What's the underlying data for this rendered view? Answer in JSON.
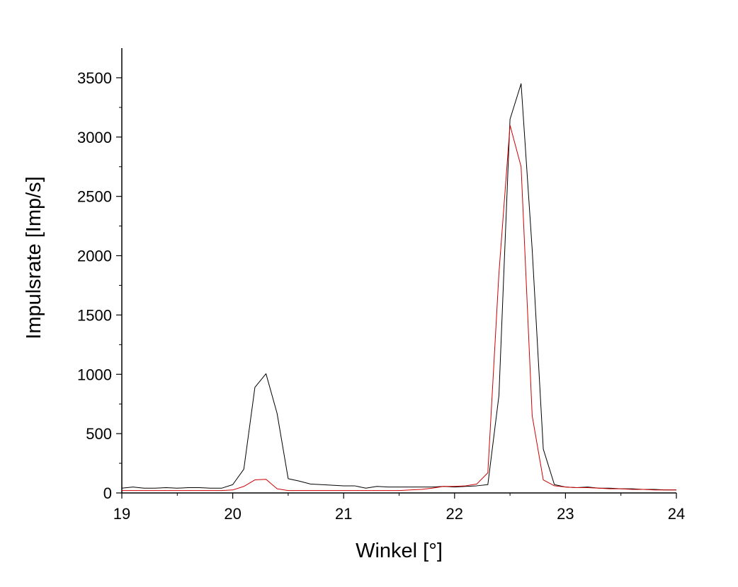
{
  "chart_data": {
    "type": "line",
    "title": "",
    "xlabel": "Winkel [°]",
    "ylabel": "Impulsrate [Imp/s]",
    "xlim": [
      19,
      24
    ],
    "ylim": [
      0,
      3750
    ],
    "x_ticks": [
      19,
      20,
      21,
      22,
      23,
      24
    ],
    "y_ticks": [
      0,
      500,
      1000,
      1500,
      2000,
      2500,
      3000,
      3500
    ],
    "grid": false,
    "legend": "none",
    "series": [
      {
        "color": "#000000",
        "x": [
          19.0,
          19.1,
          19.2,
          19.3,
          19.4,
          19.5,
          19.6,
          19.7,
          19.8,
          19.9,
          20.0,
          20.1,
          20.2,
          20.3,
          20.4,
          20.5,
          20.6,
          20.7,
          20.8,
          20.9,
          21.0,
          21.1,
          21.2,
          21.3,
          21.4,
          21.5,
          21.6,
          21.7,
          21.8,
          21.9,
          22.0,
          22.1,
          22.2,
          22.3,
          22.4,
          22.5,
          22.6,
          22.7,
          22.8,
          22.9,
          23.0,
          23.1,
          23.2,
          23.3,
          23.4,
          23.5,
          23.6,
          23.7,
          23.8,
          23.9,
          24.0
        ],
        "y": [
          40,
          50,
          40,
          40,
          45,
          40,
          45,
          45,
          40,
          40,
          70,
          200,
          890,
          1005,
          670,
          120,
          100,
          75,
          70,
          65,
          60,
          60,
          40,
          55,
          50,
          50,
          50,
          50,
          50,
          55,
          50,
          55,
          60,
          70,
          820,
          3150,
          3450,
          2050,
          370,
          70,
          50,
          45,
          50,
          40,
          40,
          35,
          35,
          30,
          30,
          25,
          25
        ]
      },
      {
        "color": "#cc0000",
        "x": [
          19.0,
          19.1,
          19.2,
          19.3,
          19.4,
          19.5,
          19.6,
          19.7,
          19.8,
          19.9,
          20.0,
          20.1,
          20.2,
          20.3,
          20.4,
          20.5,
          20.6,
          20.7,
          20.8,
          20.9,
          21.0,
          21.1,
          21.2,
          21.3,
          21.4,
          21.5,
          21.6,
          21.7,
          21.8,
          21.9,
          22.0,
          22.1,
          22.2,
          22.3,
          22.4,
          22.5,
          22.6,
          22.7,
          22.8,
          22.9,
          23.0,
          23.1,
          23.2,
          23.3,
          23.4,
          23.5,
          23.6,
          23.7,
          23.8,
          23.9,
          24.0
        ],
        "y": [
          20,
          20,
          20,
          20,
          20,
          20,
          20,
          20,
          20,
          20,
          25,
          55,
          110,
          115,
          35,
          20,
          20,
          20,
          20,
          20,
          20,
          20,
          20,
          20,
          20,
          20,
          25,
          30,
          40,
          55,
          55,
          60,
          75,
          170,
          1850,
          3100,
          2750,
          650,
          110,
          60,
          50,
          45,
          45,
          40,
          35,
          35,
          30,
          30,
          25,
          25,
          25
        ]
      }
    ]
  }
}
